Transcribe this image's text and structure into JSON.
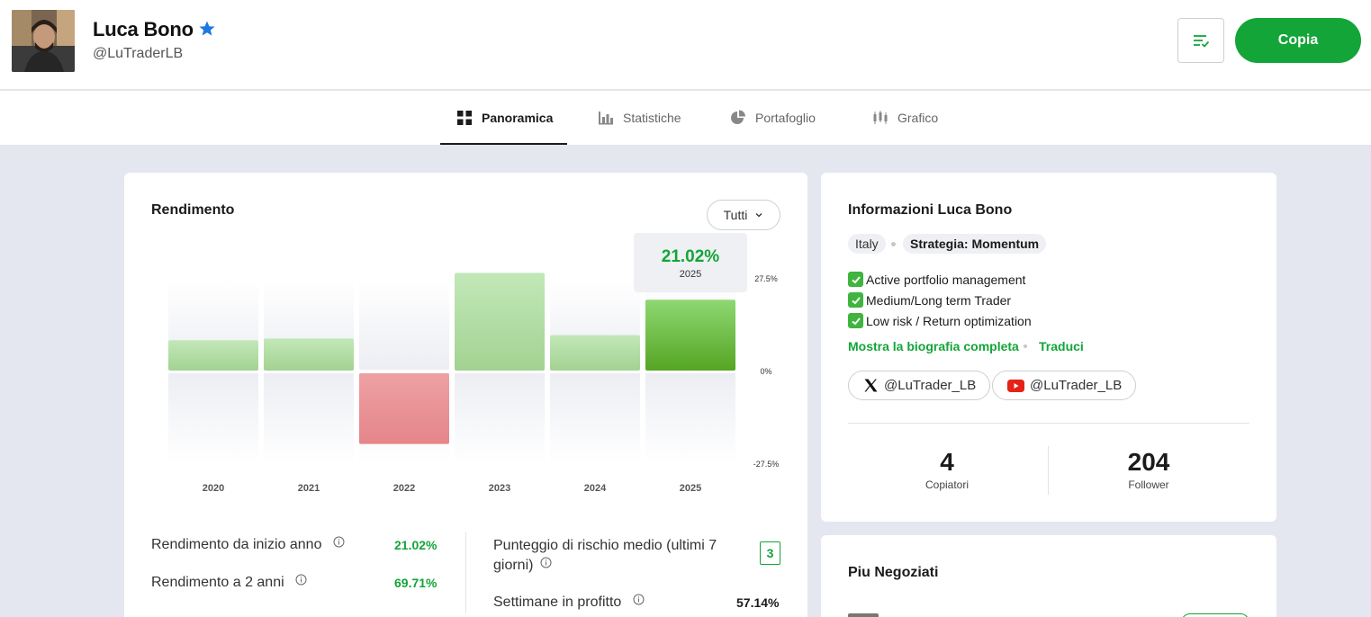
{
  "header": {
    "name": "Luca Bono",
    "handle": "@LuTraderLB",
    "copy_label": "Copia"
  },
  "tabs": [
    {
      "label": "Panoramica",
      "icon": "grid-icon",
      "active": true
    },
    {
      "label": "Statistiche",
      "icon": "bar-chart-icon",
      "active": false
    },
    {
      "label": "Portafoglio",
      "icon": "pie-chart-icon",
      "active": false
    },
    {
      "label": "Grafico",
      "icon": "candlestick-icon",
      "active": false
    }
  ],
  "performance": {
    "title": "Rendimento",
    "period": "Tutti",
    "tooltip": {
      "value": "21.02%",
      "year": "2025"
    },
    "stats_left": [
      {
        "label": "Rendimento da inizio anno",
        "value": "21.02%"
      },
      {
        "label": "Rendimento a 2 anni",
        "value": "69.71%"
      }
    ],
    "stats_right": [
      {
        "label_line1": "Punteggio di rischio medio (ultimi 7",
        "label_line2": "giorni)",
        "value": "3"
      },
      {
        "label": "Settimane in profitto",
        "value": "57.14%"
      }
    ]
  },
  "chart_data": {
    "type": "bar",
    "categories": [
      "2020",
      "2021",
      "2022",
      "2023",
      "2024",
      "2025"
    ],
    "values": [
      9,
      9.5,
      -21,
      29,
      10.5,
      21.02
    ],
    "ylim": [
      -27.5,
      27.5
    ],
    "y_ticks": [
      "27.5%",
      "0%",
      "-27.5%"
    ],
    "colors": {
      "positive": "#9bd48a",
      "negative": "#e9878b",
      "highlight": "#5fb035"
    }
  },
  "info": {
    "title": "Informazioni Luca Bono",
    "country": "Italy",
    "strategy": "Strategia: Momentum",
    "bio": [
      "Active portfolio management",
      "Medium/Long term Trader",
      "Low risk / Return optimization"
    ],
    "show_bio_label": "Mostra la biografia completa",
    "translate_label": "Traduci",
    "socials": [
      {
        "network": "x-icon",
        "handle": "@LuTrader_LB"
      },
      {
        "network": "youtube-icon",
        "handle": "@LuTrader_LB"
      }
    ],
    "copiers": {
      "value": "4",
      "label": "Copiatori"
    },
    "followers": {
      "value": "204",
      "label": "Follower"
    }
  },
  "most_traded": {
    "title": "Piu Negoziati"
  },
  "colors": {
    "accent": "#13a538",
    "background": "#e4e6f0"
  }
}
